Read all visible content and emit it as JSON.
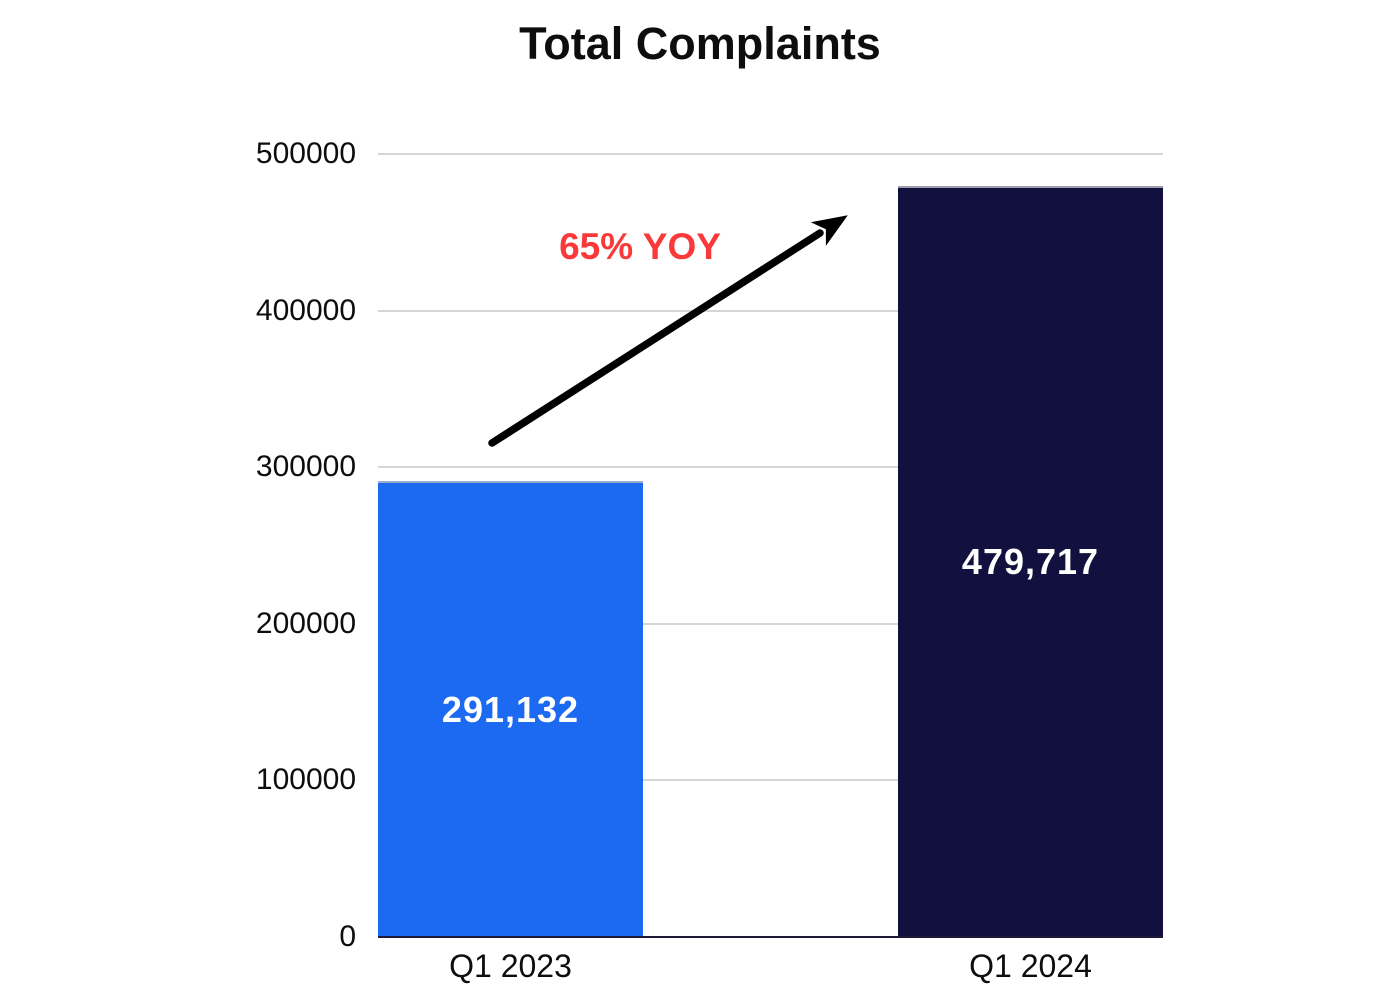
{
  "chart_data": {
    "type": "bar",
    "title": "Total Complaints",
    "categories": [
      "Q1 2023",
      "Q1 2024"
    ],
    "values": [
      291132,
      479717
    ],
    "series": [
      {
        "name": "Total Complaints",
        "values": [
          291132,
          479717
        ]
      }
    ],
    "value_labels": [
      "291,132",
      "479,717"
    ],
    "bar_colors": [
      "#1c69f2",
      "#11103f"
    ],
    "xlabel": "",
    "ylabel": "",
    "ylim": [
      0,
      500000
    ],
    "yticks": [
      0,
      100000,
      200000,
      300000,
      400000,
      500000
    ],
    "ytick_labels": [
      "0",
      "100000",
      "200000",
      "300000",
      "400000",
      "500000"
    ],
    "grid": true,
    "legend": "none",
    "annotation": {
      "text": "65% YOY",
      "color": "#fa3a3a"
    }
  },
  "colors": {
    "background": "#ffffff",
    "title_text": "#0d0d0d",
    "axis_text": "#0d0d0d",
    "gridline": "#d6d6d6",
    "baseline": "#1c1c3a",
    "bar_label_text": "#ffffff",
    "arrow": "#000000"
  }
}
